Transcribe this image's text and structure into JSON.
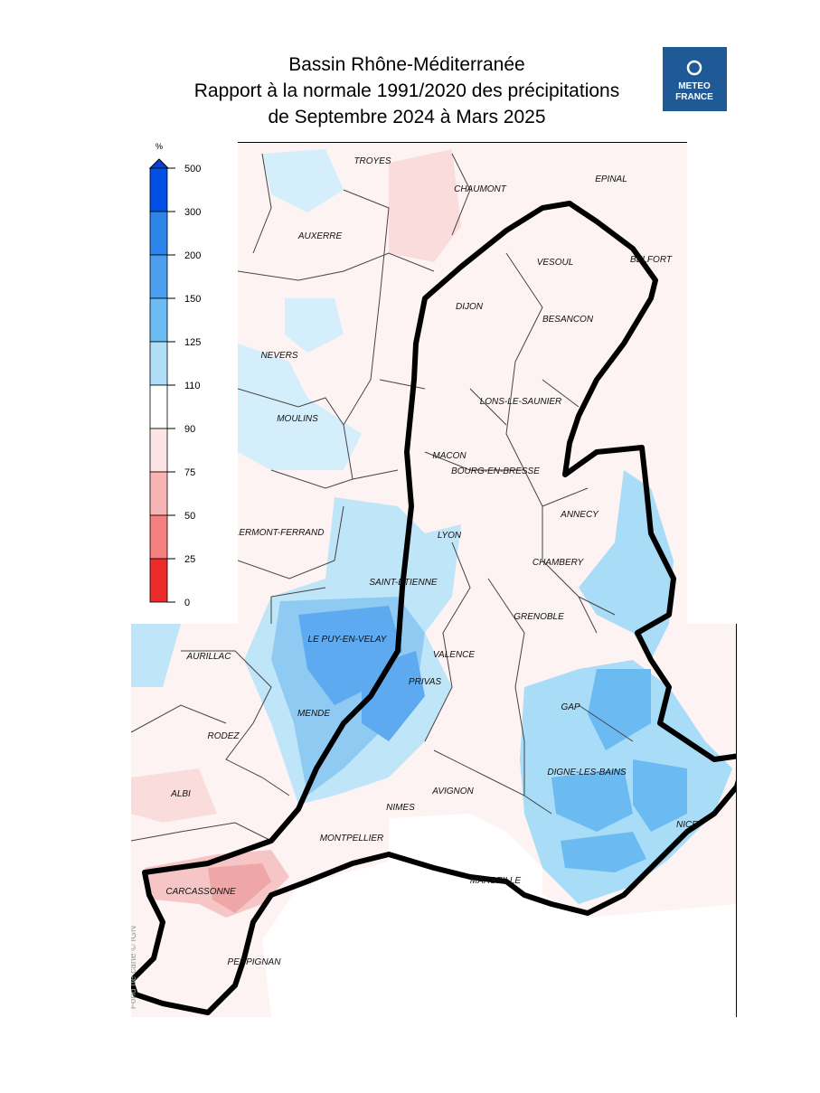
{
  "header": {
    "title_lines": [
      "Bassin Rhône-Méditerranée",
      "Rapport à la normale 1991/2020 des précipitations",
      "de Septembre 2024 à Mars 2025"
    ]
  },
  "logo": {
    "lines": [
      "METEO",
      "FRANCE"
    ]
  },
  "legend": {
    "unit": "%",
    "ticks": [
      500,
      300,
      200,
      150,
      125,
      110,
      90,
      75,
      50,
      25,
      0
    ]
  },
  "map": {
    "cities": [
      "TROYES",
      "CHAUMONT",
      "EPINAL",
      "AUXERRE",
      "VESOUL",
      "BELFORT",
      "DIJON",
      "BESANCON",
      "NEVERS",
      "LONS-LE-SAUNIER",
      "MOULINS",
      "MACON",
      "BOURG-EN-BRESSE",
      "ANNECY",
      "CLERMONT-FERRAND",
      "LYON",
      "CHAMBERY",
      "SAINT-ETIENNE",
      "GRENOBLE",
      "LE PUY-EN-VELAY",
      "AURILLAC",
      "VALENCE",
      "PRIVAS",
      "GAP",
      "MENDE",
      "RODEZ",
      "DIGNE-LES-BAINS",
      "ALBI",
      "NIMES",
      "AVIGNON",
      "NICE",
      "MONTPELLIER",
      "MARSEILLE",
      "CARCASSONNE",
      "PERPIGNAN"
    ],
    "credit": "Fond de carte © IGN"
  }
}
